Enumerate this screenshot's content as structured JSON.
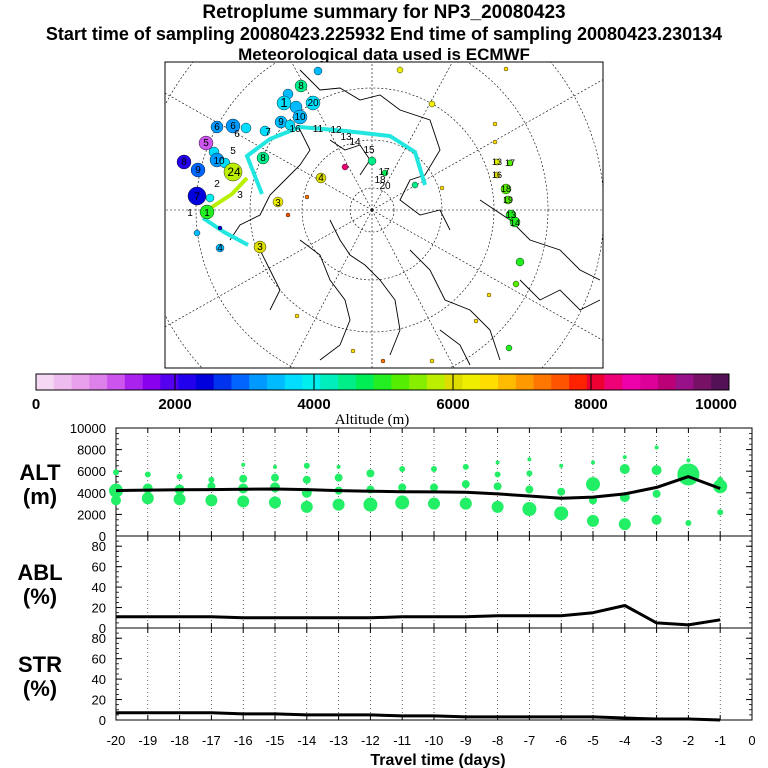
{
  "header": {
    "title": "Retroplume summary for NP3_20080423",
    "sampling_line": "Start time of sampling 20080423.225932     End time of sampling 20080423.230134",
    "met_line": "Meteorological data used is ECMWF"
  },
  "colors": {
    "plume_track": "#22e6e0",
    "path_yellow": "#b8f000",
    "points_green": "#22ee66",
    "line": "#000000"
  },
  "colorbar": {
    "colors": [
      "#f4d8f4",
      "#eebcee",
      "#e8a0ec",
      "#dd80ea",
      "#cc55ee",
      "#aa22ee",
      "#8800ee",
      "#5500ee",
      "#2200ee",
      "#0000dd",
      "#0033ee",
      "#0066ff",
      "#0099ff",
      "#00bbff",
      "#00ddff",
      "#00eeee",
      "#00eebb",
      "#00ee88",
      "#00ee55",
      "#22ee22",
      "#55ee00",
      "#88ee00",
      "#bbee00",
      "#dddd00",
      "#eeee00",
      "#ffdd00",
      "#ffbb00",
      "#ff9900",
      "#ff7700",
      "#ff5500",
      "#ff2200",
      "#ee0033",
      "#ee0077",
      "#ee00aa",
      "#dd0099",
      "#bb0077",
      "#991188",
      "#771166",
      "#551155"
    ],
    "tick_labels": [
      "0",
      "2000",
      "4000",
      "6000",
      "8000",
      "10000"
    ],
    "label": "Altitude (m)"
  },
  "map": {
    "cluster_labels": [
      "1",
      "2",
      "3",
      "4",
      "5",
      "6",
      "7",
      "8",
      "9",
      "10",
      "11",
      "12",
      "13",
      "14",
      "15",
      "16",
      "17",
      "18",
      "19",
      "20",
      "24"
    ]
  },
  "chart_data": [
    {
      "type": "line",
      "panel": "ALT",
      "ylabel": "ALT (m)",
      "ylabel_lines": [
        "ALT",
        "(m)"
      ],
      "ylim": [
        0,
        10000
      ],
      "yticks": [
        "0",
        "2000",
        "4000",
        "6000",
        "8000",
        "10000"
      ],
      "x": [
        -20,
        -19,
        -18,
        -17,
        -16,
        -15,
        -14,
        -13,
        -12,
        -11,
        -10,
        -9,
        -8,
        -7,
        -6,
        -5,
        -4,
        -3,
        -2,
        -1
      ],
      "series": [
        {
          "name": "mean altitude",
          "values": [
            4200,
            4250,
            4280,
            4300,
            4330,
            4350,
            4300,
            4200,
            4150,
            4100,
            4080,
            4050,
            3900,
            3700,
            3500,
            3600,
            3900,
            4500,
            5500,
            4400
          ]
        }
      ],
      "scatter": [
        {
          "x": -20,
          "y": 5900,
          "s": 3
        },
        {
          "x": -20,
          "y": 4200,
          "s": 7
        },
        {
          "x": -20,
          "y": 3300,
          "s": 5
        },
        {
          "x": -19,
          "y": 5700,
          "s": 3
        },
        {
          "x": -19,
          "y": 4400,
          "s": 5
        },
        {
          "x": -19,
          "y": 3500,
          "s": 6
        },
        {
          "x": -18,
          "y": 5500,
          "s": 3
        },
        {
          "x": -18,
          "y": 4300,
          "s": 5
        },
        {
          "x": -18,
          "y": 3400,
          "s": 6
        },
        {
          "x": -17,
          "y": 5200,
          "s": 3
        },
        {
          "x": -17,
          "y": 4600,
          "s": 4
        },
        {
          "x": -17,
          "y": 3300,
          "s": 6
        },
        {
          "x": -16,
          "y": 6600,
          "s": 2
        },
        {
          "x": -16,
          "y": 5300,
          "s": 4
        },
        {
          "x": -16,
          "y": 4400,
          "s": 5
        },
        {
          "x": -16,
          "y": 3200,
          "s": 6
        },
        {
          "x": -15,
          "y": 6400,
          "s": 2
        },
        {
          "x": -15,
          "y": 5400,
          "s": 4
        },
        {
          "x": -15,
          "y": 4500,
          "s": 5
        },
        {
          "x": -15,
          "y": 3100,
          "s": 6
        },
        {
          "x": -14,
          "y": 6500,
          "s": 3
        },
        {
          "x": -14,
          "y": 5200,
          "s": 4
        },
        {
          "x": -14,
          "y": 4000,
          "s": 5
        },
        {
          "x": -14,
          "y": 2700,
          "s": 6
        },
        {
          "x": -13,
          "y": 6400,
          "s": 2
        },
        {
          "x": -13,
          "y": 5400,
          "s": 4
        },
        {
          "x": -13,
          "y": 4200,
          "s": 4
        },
        {
          "x": -13,
          "y": 2900,
          "s": 6
        },
        {
          "x": -12,
          "y": 5800,
          "s": 4
        },
        {
          "x": -12,
          "y": 4300,
          "s": 4
        },
        {
          "x": -12,
          "y": 2900,
          "s": 7
        },
        {
          "x": -11,
          "y": 6200,
          "s": 3
        },
        {
          "x": -11,
          "y": 4500,
          "s": 4
        },
        {
          "x": -11,
          "y": 3100,
          "s": 7
        },
        {
          "x": -10,
          "y": 6200,
          "s": 3
        },
        {
          "x": -10,
          "y": 4500,
          "s": 4
        },
        {
          "x": -10,
          "y": 3000,
          "s": 6
        },
        {
          "x": -9,
          "y": 6400,
          "s": 3
        },
        {
          "x": -9,
          "y": 4800,
          "s": 4
        },
        {
          "x": -9,
          "y": 3000,
          "s": 6
        },
        {
          "x": -8,
          "y": 6800,
          "s": 2
        },
        {
          "x": -8,
          "y": 5700,
          "s": 3
        },
        {
          "x": -8,
          "y": 4600,
          "s": 4
        },
        {
          "x": -8,
          "y": 2700,
          "s": 6
        },
        {
          "x": -7,
          "y": 7100,
          "s": 2
        },
        {
          "x": -7,
          "y": 5800,
          "s": 3
        },
        {
          "x": -7,
          "y": 4300,
          "s": 4
        },
        {
          "x": -7,
          "y": 2500,
          "s": 7
        },
        {
          "x": -6,
          "y": 6500,
          "s": 2
        },
        {
          "x": -6,
          "y": 4100,
          "s": 4
        },
        {
          "x": -6,
          "y": 2100,
          "s": 7
        },
        {
          "x": -5,
          "y": 6800,
          "s": 2
        },
        {
          "x": -5,
          "y": 4800,
          "s": 7
        },
        {
          "x": -5,
          "y": 3300,
          "s": 4
        },
        {
          "x": -5,
          "y": 1400,
          "s": 6
        },
        {
          "x": -4,
          "y": 7300,
          "s": 2
        },
        {
          "x": -4,
          "y": 6200,
          "s": 5
        },
        {
          "x": -4,
          "y": 3600,
          "s": 5
        },
        {
          "x": -4,
          "y": 1100,
          "s": 6
        },
        {
          "x": -3,
          "y": 8200,
          "s": 2
        },
        {
          "x": -3,
          "y": 6100,
          "s": 5
        },
        {
          "x": -3,
          "y": 3900,
          "s": 4
        },
        {
          "x": -3,
          "y": 1500,
          "s": 5
        },
        {
          "x": -2,
          "y": 7000,
          "s": 2
        },
        {
          "x": -2,
          "y": 5700,
          "s": 11
        },
        {
          "x": -2,
          "y": 1200,
          "s": 3
        },
        {
          "x": -1,
          "y": 5200,
          "s": 3
        },
        {
          "x": -1,
          "y": 4600,
          "s": 7
        },
        {
          "x": -1,
          "y": 2200,
          "s": 3
        }
      ]
    },
    {
      "type": "line",
      "panel": "ABL",
      "ylabel": "ABL (%)",
      "ylabel_lines": [
        "ABL",
        "(%)"
      ],
      "ylim": [
        0,
        90
      ],
      "yticks": [
        "0",
        "20",
        "40",
        "60",
        "80"
      ],
      "x": [
        -20,
        -19,
        -18,
        -17,
        -16,
        -15,
        -14,
        -13,
        -12,
        -11,
        -10,
        -9,
        -8,
        -7,
        -6,
        -5,
        -4,
        -3,
        -2,
        -1
      ],
      "series": [
        {
          "name": "ABL fraction",
          "values": [
            11,
            11,
            11,
            11,
            10,
            10,
            10,
            10,
            10,
            11,
            11,
            11,
            12,
            12,
            12,
            15,
            22,
            5,
            3,
            8
          ]
        }
      ]
    },
    {
      "type": "line",
      "panel": "STR",
      "ylabel": "STR (%)",
      "ylabel_lines": [
        "STR",
        "(%)"
      ],
      "ylim": [
        0,
        90
      ],
      "yticks": [
        "0",
        "20",
        "40",
        "60",
        "80"
      ],
      "x": [
        -20,
        -19,
        -18,
        -17,
        -16,
        -15,
        -14,
        -13,
        -12,
        -11,
        -10,
        -9,
        -8,
        -7,
        -6,
        -5,
        -4,
        -3,
        -2,
        -1
      ],
      "xticks": [
        "-20",
        "-19",
        "-18",
        "-17",
        "-16",
        "-15",
        "-14",
        "-13",
        "-12",
        "-11",
        "-10",
        "-9",
        "-8",
        "-7",
        "-6",
        "-5",
        "-4",
        "-3",
        "-2",
        "-1",
        "0"
      ],
      "xlabel": "Travel time (days)",
      "series": [
        {
          "name": "STR fraction",
          "values": [
            7,
            7,
            7,
            7,
            6,
            6,
            5,
            5,
            5,
            4,
            4,
            3,
            3,
            3,
            3,
            3,
            2,
            1,
            1,
            0
          ]
        }
      ]
    }
  ]
}
